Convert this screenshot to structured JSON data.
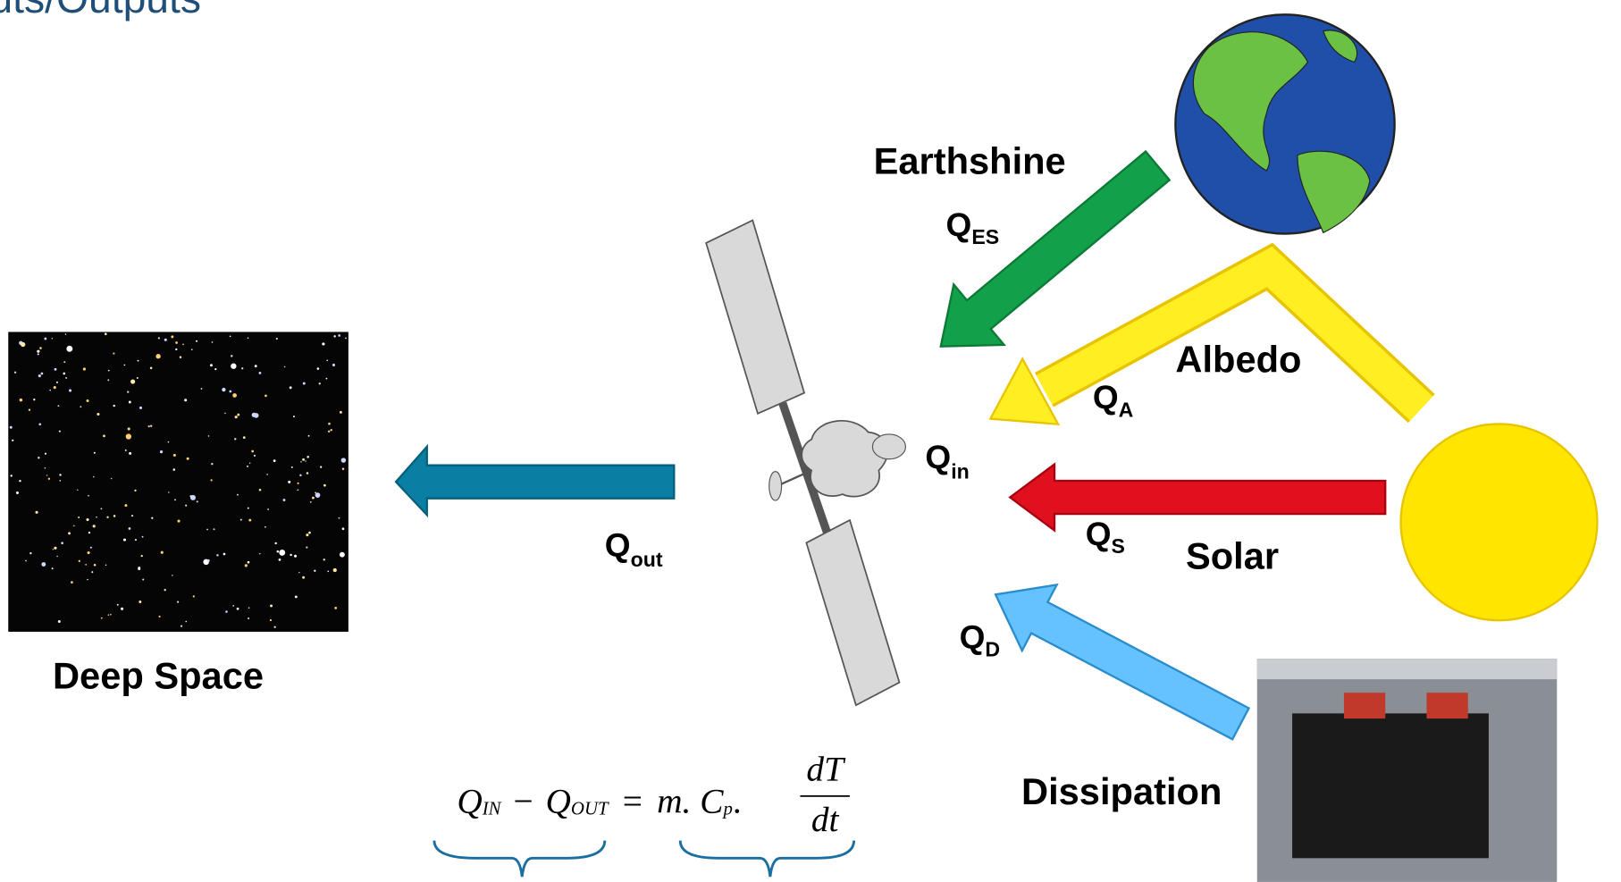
{
  "header": {
    "title": "uts/Outputs"
  },
  "labels": {
    "earthshine": "Earthshine",
    "albedo": "Albedo",
    "solar": "Solar",
    "dissipation": "Dissipation",
    "deep_space": "Deep Space"
  },
  "fluxes": [
    {
      "symbol": "Q",
      "subscript": "ES"
    },
    {
      "symbol": "Q",
      "subscript": "A"
    },
    {
      "symbol": "Q",
      "subscript": "in"
    },
    {
      "symbol": "Q",
      "subscript": "S"
    },
    {
      "symbol": "Q",
      "subscript": "D"
    },
    {
      "symbol": "Q",
      "subscript": "out"
    }
  ],
  "equation": {
    "q_in": "Q",
    "q_in_sub": "IN",
    "minus": "−",
    "q_out": "Q",
    "q_out_sub": "OUT",
    "equals": "=",
    "m_c": "m. C",
    "c_sub": "p",
    "dot": ".",
    "numerator": "dT",
    "denominator": "dt"
  }
}
